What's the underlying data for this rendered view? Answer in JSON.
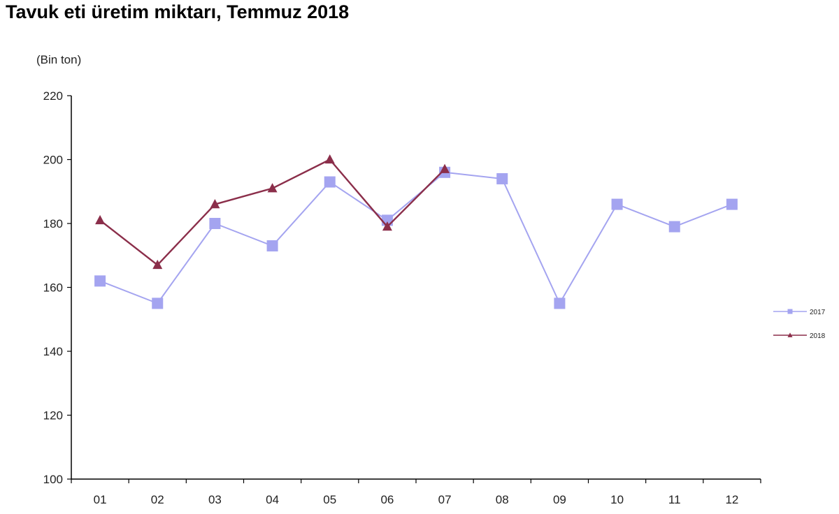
{
  "chart_data": {
    "type": "line",
    "title": "Tavuk eti üretim miktarı, Temmuz 2018",
    "unit_label": "(Bin ton)",
    "xlabel": "",
    "ylabel": "",
    "categories": [
      "01",
      "02",
      "03",
      "04",
      "05",
      "06",
      "07",
      "08",
      "09",
      "10",
      "11",
      "12"
    ],
    "ylim": [
      100,
      220
    ],
    "yticks": [
      100,
      120,
      140,
      160,
      180,
      200,
      220
    ],
    "grid": false,
    "legend_position": "right",
    "series": [
      {
        "name": "2017",
        "color": "#a4a4f0",
        "marker": "square",
        "values": [
          162,
          155,
          180,
          173,
          193,
          181,
          196,
          194,
          155,
          186,
          179,
          186
        ]
      },
      {
        "name": "2018",
        "color": "#8b2e4a",
        "marker": "triangle",
        "values": [
          181,
          167,
          186,
          191,
          200,
          179,
          197,
          null,
          null,
          null,
          null,
          null
        ]
      }
    ]
  }
}
